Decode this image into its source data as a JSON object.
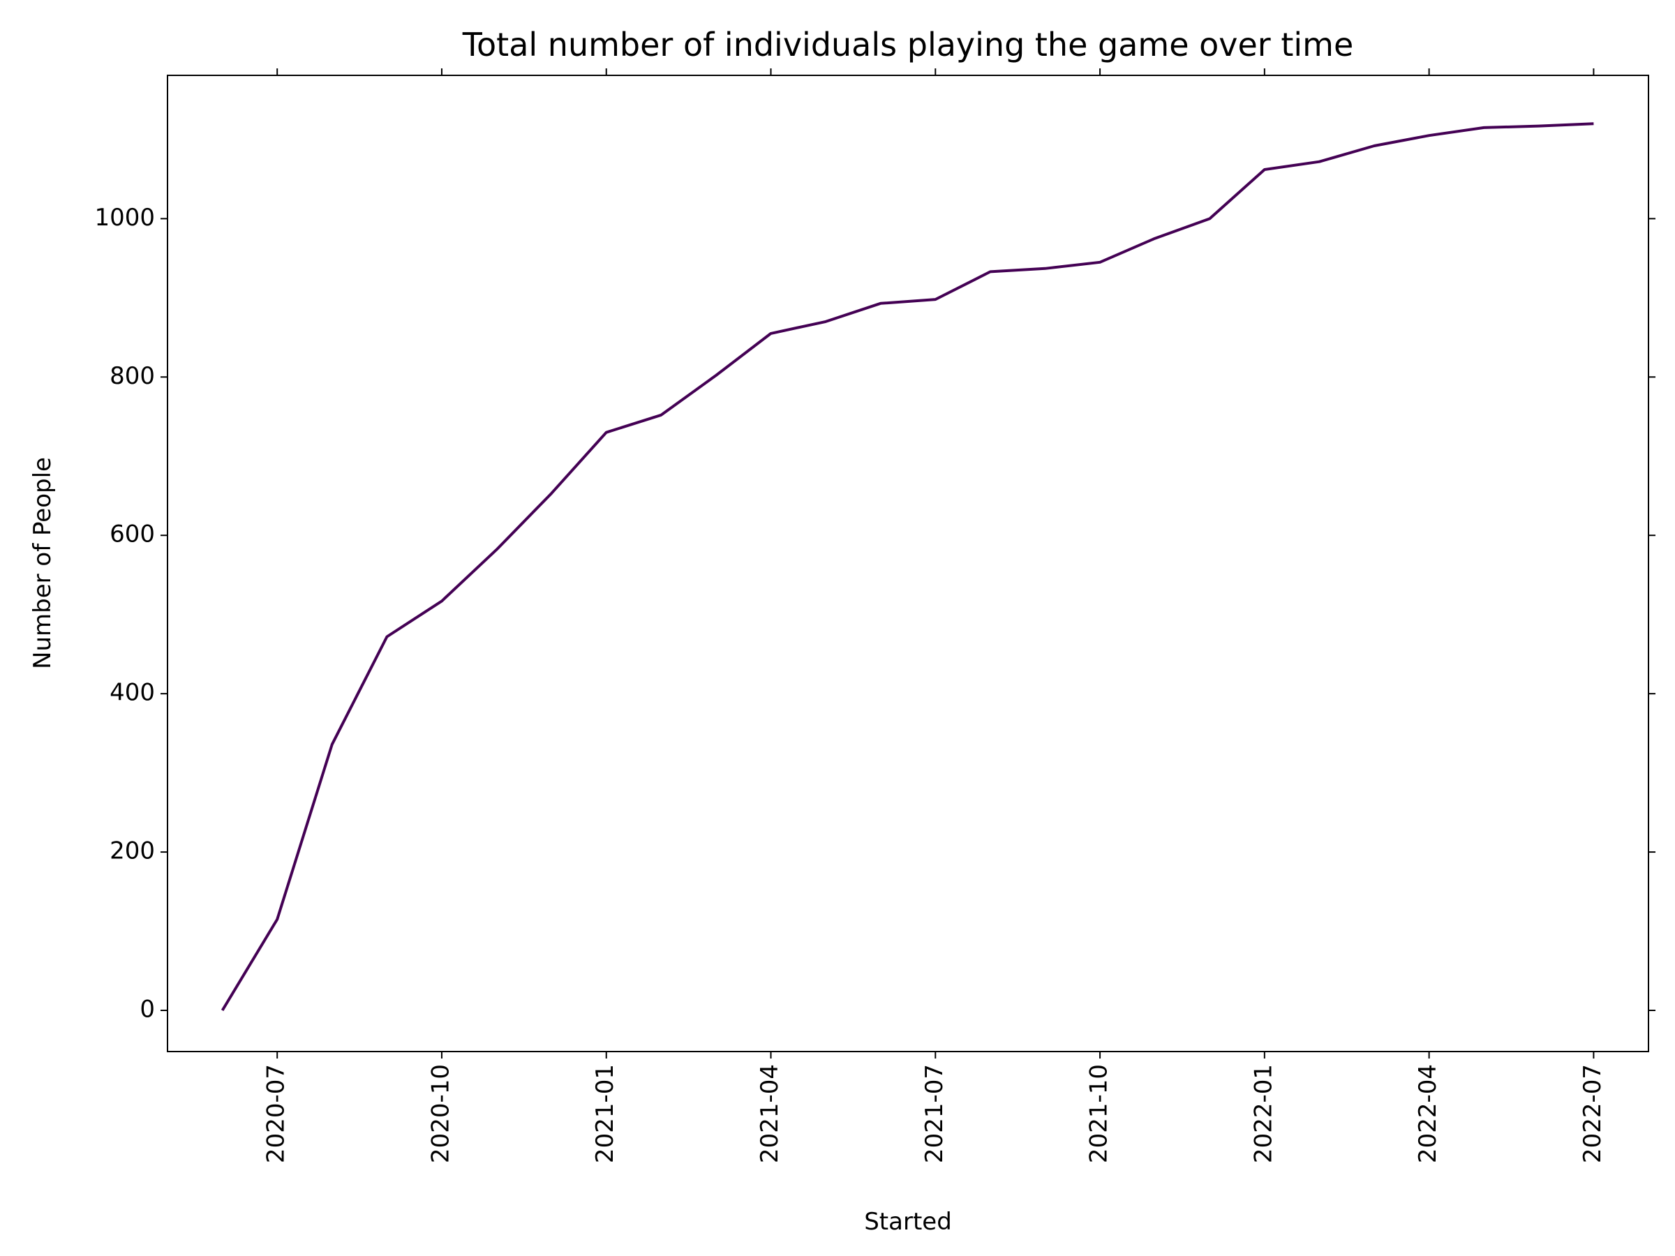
{
  "chart_data": {
    "type": "line",
    "title": "Total number of individuals playing the game over time",
    "x_label": "Started",
    "y_label": "Number of People",
    "x": [
      "2020-06",
      "2020-07",
      "2020-08",
      "2020-09",
      "2020-10",
      "2020-11",
      "2020-12",
      "2021-01",
      "2021-02",
      "2021-03",
      "2021-04",
      "2021-05",
      "2021-06",
      "2021-07",
      "2021-08",
      "2021-09",
      "2021-10",
      "2021-11",
      "2021-12",
      "2022-01",
      "2022-02",
      "2022-03",
      "2022-04",
      "2022-05",
      "2022-06",
      "2022-07"
    ],
    "values": [
      0,
      115,
      336,
      472,
      517,
      582,
      653,
      730,
      752,
      802,
      855,
      870,
      893,
      898,
      933,
      937,
      945,
      975,
      1000,
      1062,
      1072,
      1092,
      1105,
      1115,
      1117,
      1120
    ],
    "color": "#440154",
    "xlim": [
      "2020-05",
      "2022-08"
    ],
    "xticks": [
      "2020-07",
      "2020-10",
      "2021-01",
      "2021-04",
      "2021-07",
      "2021-10",
      "2022-01",
      "2022-04",
      "2022-07"
    ],
    "ylim": [
      -52,
      1181
    ],
    "yticks": [
      0,
      200,
      400,
      600,
      800,
      1000
    ]
  }
}
